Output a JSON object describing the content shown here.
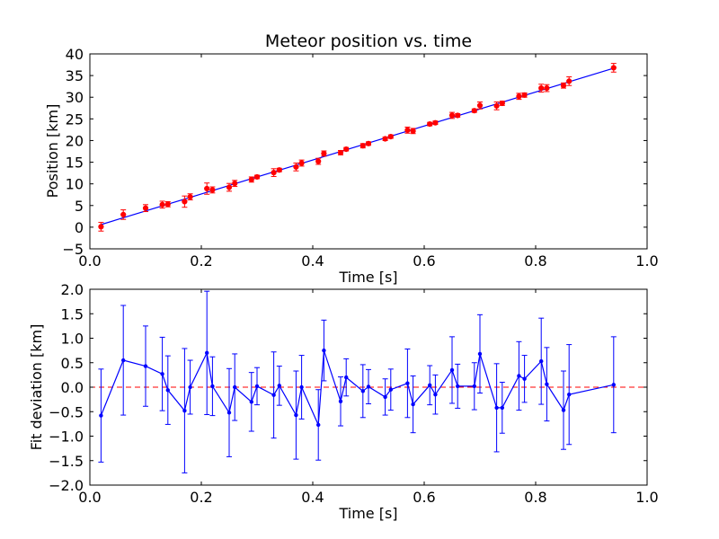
{
  "colors": {
    "fit_line": "#0000ff",
    "measured_points": "#ff0000",
    "measured_errorbars": "#ff0000",
    "deviation_series": "#0000ff",
    "zero_line": "#ff0000",
    "axes": "#000000",
    "background": "#ffffff"
  },
  "chart_data": [
    {
      "type": "scatter",
      "title": "Meteor position vs. time",
      "xlabel": "Time [s]",
      "ylabel": "Position [km]",
      "xlim": [
        0.0,
        1.0
      ],
      "ylim": [
        -5,
        40
      ],
      "xticks": [
        "0.0",
        "0.2",
        "0.4",
        "0.6",
        "0.8",
        "1.0"
      ],
      "xtick_values": [
        0.0,
        0.2,
        0.4,
        0.6,
        0.8,
        1.0
      ],
      "yticks": [
        "−5",
        "0",
        "5",
        "10",
        "15",
        "20",
        "25",
        "30",
        "35",
        "40"
      ],
      "ytick_values": [
        -5,
        0,
        5,
        10,
        15,
        20,
        25,
        30,
        35,
        40
      ],
      "grid": false,
      "series": [
        {
          "kind": "points-with-errorbars",
          "x": [
            0.02,
            0.06,
            0.1,
            0.13,
            0.14,
            0.17,
            0.18,
            0.21,
            0.22,
            0.25,
            0.26,
            0.29,
            0.3,
            0.33,
            0.34,
            0.37,
            0.38,
            0.41,
            0.42,
            0.45,
            0.46,
            0.49,
            0.5,
            0.53,
            0.54,
            0.57,
            0.58,
            0.61,
            0.62,
            0.65,
            0.66,
            0.69,
            0.7,
            0.73,
            0.74,
            0.77,
            0.78,
            0.81,
            0.82,
            0.85,
            0.86,
            0.94
          ],
          "y": [
            0.1,
            2.9,
            4.4,
            5.2,
            5.3,
            5.9,
            7.0,
            8.9,
            8.6,
            9.2,
            10.1,
            11.0,
            11.6,
            12.6,
            13.2,
            13.9,
            14.8,
            15.2,
            17.0,
            17.2,
            18.0,
            18.8,
            19.3,
            20.4,
            20.9,
            22.4,
            22.2,
            23.8,
            24.1,
            25.8,
            25.8,
            26.9,
            28.1,
            28.0,
            28.6,
            30.2,
            30.5,
            32.1,
            32.1,
            32.7,
            33.7,
            36.8
          ],
          "yerr": [
            1.0,
            1.1,
            0.8,
            0.8,
            0.6,
            1.3,
            0.7,
            1.3,
            0.7,
            0.9,
            0.7,
            0.6,
            0.4,
            0.9,
            0.4,
            0.9,
            0.7,
            0.7,
            0.6,
            0.5,
            0.4,
            0.5,
            0.4,
            0.4,
            0.4,
            0.7,
            0.6,
            0.4,
            0.4,
            0.7,
            0.4,
            0.4,
            0.8,
            0.9,
            0.5,
            0.7,
            0.5,
            0.9,
            0.8,
            0.6,
            1.0,
            1.0
          ]
        },
        {
          "kind": "fit-line",
          "x": [
            0.02,
            0.94
          ],
          "y": [
            0.6,
            36.7
          ]
        }
      ]
    },
    {
      "type": "line",
      "xlabel": "Time [s]",
      "ylabel": "Fit deviation [km]",
      "xlim": [
        0.0,
        1.0
      ],
      "ylim": [
        -2.0,
        2.0
      ],
      "xticks": [
        "0.0",
        "0.2",
        "0.4",
        "0.6",
        "0.8",
        "1.0"
      ],
      "xtick_values": [
        0.0,
        0.2,
        0.4,
        0.6,
        0.8,
        1.0
      ],
      "yticks": [
        "−2.0",
        "−1.5",
        "−1.0",
        "−0.5",
        "0.0",
        "0.5",
        "1.0",
        "1.5",
        "2.0"
      ],
      "ytick_values": [
        -2.0,
        -1.5,
        -1.0,
        -0.5,
        0.0,
        0.5,
        1.0,
        1.5,
        2.0
      ],
      "grid": false,
      "zero_line": 0.0,
      "series": [
        {
          "kind": "line-with-errorbars",
          "x": [
            0.02,
            0.06,
            0.1,
            0.13,
            0.14,
            0.17,
            0.18,
            0.21,
            0.22,
            0.25,
            0.26,
            0.29,
            0.3,
            0.33,
            0.34,
            0.37,
            0.38,
            0.41,
            0.42,
            0.45,
            0.46,
            0.49,
            0.5,
            0.53,
            0.54,
            0.57,
            0.58,
            0.61,
            0.62,
            0.65,
            0.66,
            0.69,
            0.7,
            0.73,
            0.74,
            0.77,
            0.78,
            0.81,
            0.82,
            0.85,
            0.86,
            0.94
          ],
          "y": [
            -0.58,
            0.55,
            0.43,
            0.27,
            -0.06,
            -0.48,
            0.0,
            0.7,
            0.02,
            -0.52,
            0.0,
            -0.3,
            0.02,
            -0.16,
            0.03,
            -0.57,
            0.0,
            -0.77,
            0.75,
            -0.29,
            0.2,
            -0.08,
            0.01,
            -0.2,
            -0.05,
            0.08,
            -0.35,
            0.04,
            -0.15,
            0.35,
            0.02,
            0.02,
            0.68,
            -0.42,
            -0.42,
            0.23,
            0.17,
            0.53,
            0.06,
            -0.47,
            -0.15,
            0.05
          ],
          "yerr": [
            0.95,
            1.12,
            0.82,
            0.75,
            0.7,
            1.27,
            0.55,
            1.26,
            0.6,
            0.9,
            0.68,
            0.6,
            0.38,
            0.88,
            0.4,
            0.9,
            0.65,
            0.72,
            0.62,
            0.5,
            0.38,
            0.54,
            0.35,
            0.37,
            0.42,
            0.7,
            0.58,
            0.4,
            0.4,
            0.68,
            0.45,
            0.48,
            0.8,
            0.9,
            0.52,
            0.7,
            0.48,
            0.88,
            0.75,
            0.8,
            1.02,
            0.98
          ]
        }
      ]
    }
  ]
}
